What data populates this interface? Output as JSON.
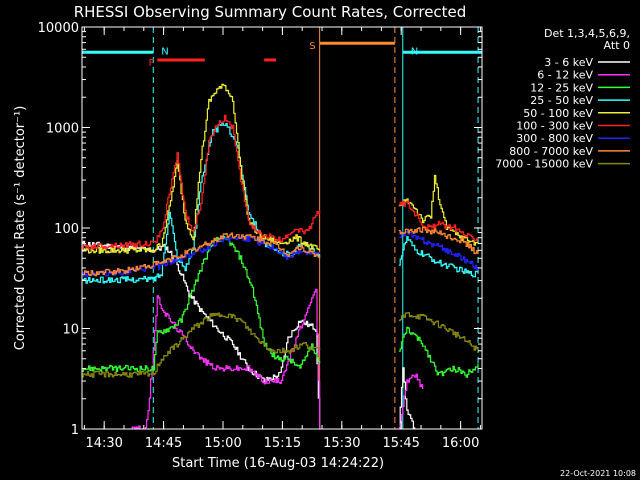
{
  "chart_data": {
    "type": "line",
    "title": "RHESSI Observing Summary Count Rates, Corrected",
    "xlabel": "Start Time (16-Aug-03 14:24:22)",
    "ylabel": "Corrected Count Rate (s⁻¹ detector⁻¹)",
    "yscale": "log",
    "ylim": [
      1,
      10000
    ],
    "xlim_minutes_from_start": [
      0,
      101
    ],
    "x_unit": "minutes after 14:24:22 UT",
    "x_ticks": [
      {
        "minute": 5.6,
        "label": "14:30"
      },
      {
        "minute": 20.6,
        "label": "14:45"
      },
      {
        "minute": 35.6,
        "label": "15:00"
      },
      {
        "minute": 50.6,
        "label": "15:15"
      },
      {
        "minute": 65.6,
        "label": "15:30"
      },
      {
        "minute": 80.6,
        "label": "15:45"
      },
      {
        "minute": 95.6,
        "label": "16:00"
      }
    ],
    "y_ticks": [
      {
        "value": 1,
        "label": "1"
      },
      {
        "value": 10,
        "label": "10"
      },
      {
        "value": 100,
        "label": "100"
      },
      {
        "value": 1000,
        "label": "1000"
      },
      {
        "value": 10000,
        "label": "10000"
      }
    ],
    "legend_header": [
      "Det 1,3,4,5,6,9,",
      "Att 0"
    ],
    "legend_position": "right",
    "series": [
      {
        "name": "3 - 6 keV",
        "color": "#ffffff",
        "x": [
          0,
          18,
          19,
          21,
          23,
          25,
          27,
          30,
          34,
          38,
          42,
          46,
          50,
          52,
          55,
          59,
          60
        ],
        "y": [
          70,
          60,
          62,
          65,
          52,
          35,
          22,
          15,
          10,
          7,
          4,
          3,
          3.5,
          8,
          12,
          10,
          1
        ]
      },
      {
        "name": "6 - 12 keV",
        "color": "#ff33ff",
        "x": [
          12,
          16,
          17,
          19,
          21,
          24,
          27,
          30,
          34,
          38,
          42,
          46,
          50,
          53,
          55,
          57,
          59,
          60
        ],
        "y": [
          1,
          1,
          2,
          20,
          14,
          10,
          7,
          5,
          4,
          4,
          4,
          3,
          3,
          6,
          10,
          15,
          25,
          1
        ]
      },
      {
        "name": "12 - 25 keV",
        "color": "#33ff33",
        "x": [
          0,
          18,
          19,
          22,
          25,
          28,
          31,
          34,
          37,
          40,
          43,
          46,
          49,
          52,
          55,
          58,
          60
        ],
        "y": [
          4,
          4,
          9,
          10,
          12,
          25,
          50,
          80,
          75,
          50,
          25,
          7,
          5,
          5,
          4,
          7,
          4.5
        ]
      },
      {
        "name": "25 - 50 keV",
        "color": "#33ffff",
        "x": [
          0,
          18,
          20,
          22,
          24,
          26,
          28,
          30,
          33,
          36,
          39,
          42,
          46,
          50,
          53,
          56,
          58,
          60
        ],
        "y": [
          30,
          31,
          35,
          150,
          50,
          40,
          60,
          300,
          900,
          1100,
          700,
          150,
          70,
          55,
          55,
          75,
          60,
          50
        ]
      },
      {
        "name": "50 - 100 keV",
        "color": "#eeee33",
        "x": [
          0,
          18,
          20,
          22,
          24,
          26,
          28,
          30,
          32,
          34,
          36,
          38,
          40,
          42,
          44,
          46,
          50,
          54,
          58,
          60
        ],
        "y": [
          60,
          60,
          70,
          160,
          450,
          120,
          80,
          500,
          1800,
          2400,
          2600,
          1900,
          400,
          120,
          90,
          80,
          70,
          80,
          65,
          60
        ]
      },
      {
        "name": "100 - 300 keV",
        "color": "#ff2222",
        "x": [
          0,
          18,
          20,
          22,
          24,
          26,
          28,
          30,
          32,
          34,
          36,
          38,
          40,
          42,
          44,
          46,
          50,
          54,
          57,
          59,
          60
        ],
        "y": [
          65,
          70,
          90,
          220,
          550,
          140,
          90,
          180,
          700,
          1100,
          1250,
          1000,
          300,
          120,
          90,
          85,
          75,
          100,
          90,
          140,
          150
        ]
      },
      {
        "name": "300 - 800 keV",
        "color": "#2222ff",
        "x": [
          0,
          10,
          20,
          30,
          36,
          42,
          48,
          52,
          55,
          58,
          60
        ],
        "y": [
          35,
          36,
          42,
          60,
          80,
          78,
          65,
          50,
          60,
          55,
          55
        ]
      },
      {
        "name": "800 - 7000 keV",
        "color": "#ff8833",
        "x": [
          0,
          10,
          20,
          30,
          36,
          42,
          48,
          52,
          55,
          58,
          60
        ],
        "y": [
          35,
          37,
          45,
          65,
          85,
          82,
          70,
          55,
          65,
          55,
          52
        ]
      },
      {
        "name": "7000 - 15000 keV",
        "color": "#888811",
        "x": [
          0,
          10,
          18,
          20,
          24,
          28,
          32,
          36,
          40,
          44,
          48,
          52,
          56,
          60
        ],
        "y": [
          3.5,
          3.5,
          3.5,
          5,
          7,
          10,
          13,
          14,
          12,
          8,
          6,
          6,
          7,
          6
        ]
      }
    ],
    "after_gap_series": [
      {
        "name": "3 - 6 keV",
        "color": "#ffffff",
        "x": [
          80,
          81,
          82,
          84
        ],
        "y": [
          1,
          4,
          1.5,
          1
        ]
      },
      {
        "name": "6 - 12 keV",
        "color": "#ff33ff",
        "x": [
          80,
          82,
          84,
          86
        ],
        "y": [
          1,
          3,
          3.5,
          2.5
        ]
      },
      {
        "name": "12 - 25 keV",
        "color": "#33ff33",
        "x": [
          80,
          82,
          86,
          90,
          94,
          97,
          100
        ],
        "y": [
          6,
          10,
          7,
          3.5,
          4,
          3.5,
          4.5
        ]
      },
      {
        "name": "25 - 50 keV",
        "color": "#33ffff",
        "x": [
          80,
          82,
          84,
          86,
          88,
          90,
          94,
          98,
          100
        ],
        "y": [
          45,
          80,
          60,
          55,
          50,
          45,
          40,
          35,
          35
        ]
      },
      {
        "name": "50 - 100 keV",
        "color": "#eeee33",
        "x": [
          80,
          82,
          84,
          86,
          88,
          89,
          90,
          92,
          96,
          100
        ],
        "y": [
          160,
          190,
          160,
          120,
          130,
          330,
          200,
          100,
          80,
          70
        ]
      },
      {
        "name": "100 - 300 keV",
        "color": "#ff2222",
        "x": [
          80,
          82,
          84,
          86,
          88,
          90,
          94,
          98,
          100
        ],
        "y": [
          170,
          180,
          140,
          110,
          100,
          110,
          100,
          80,
          80
        ]
      },
      {
        "name": "300 - 800 keV",
        "color": "#2222ff",
        "x": [
          80,
          82,
          84,
          88,
          92,
          96,
          100
        ],
        "y": [
          85,
          90,
          80,
          70,
          60,
          50,
          40
        ]
      },
      {
        "name": "800 - 7000 keV",
        "color": "#ff8833",
        "x": [
          80,
          82,
          86,
          90,
          96,
          100
        ],
        "y": [
          90,
          95,
          95,
          90,
          75,
          55
        ]
      },
      {
        "name": "7000 - 15000 keV",
        "color": "#888811",
        "x": [
          80,
          82,
          86,
          90,
          94,
          98,
          100
        ],
        "y": [
          12,
          14,
          13,
          11,
          9,
          7,
          6
        ]
      }
    ],
    "annotations": [
      {
        "label": "N",
        "color": "#33ffff",
        "x_start": 0,
        "x_end": 18,
        "level": 5600
      },
      {
        "label": "N",
        "color": "#33ffff",
        "x_start": 81,
        "x_end": 101,
        "level": 5600
      },
      {
        "label": "F",
        "color": "#ff2222",
        "x_start": 19,
        "x_end": 31,
        "level": 4700
      },
      {
        "label": "",
        "color": "#ff2222",
        "x_start": 46,
        "x_end": 49,
        "level": 4700
      },
      {
        "label": "S",
        "color": "#ff8833",
        "x_start": 60,
        "x_end": 79,
        "level": 6900
      }
    ],
    "vertical_markers": [
      {
        "x": 18,
        "color": "#33ffff",
        "style": "dashed"
      },
      {
        "x": 60,
        "color": "#ff8833",
        "style": "solid"
      },
      {
        "x": 79,
        "color": "#ff8833",
        "style": "dashed"
      },
      {
        "x": 81,
        "color": "#33ffff",
        "style": "solid"
      },
      {
        "x": 100,
        "color": "#33ffff",
        "style": "dashed"
      }
    ],
    "footer_timestamp": "22-Oct-2021 10:08"
  }
}
